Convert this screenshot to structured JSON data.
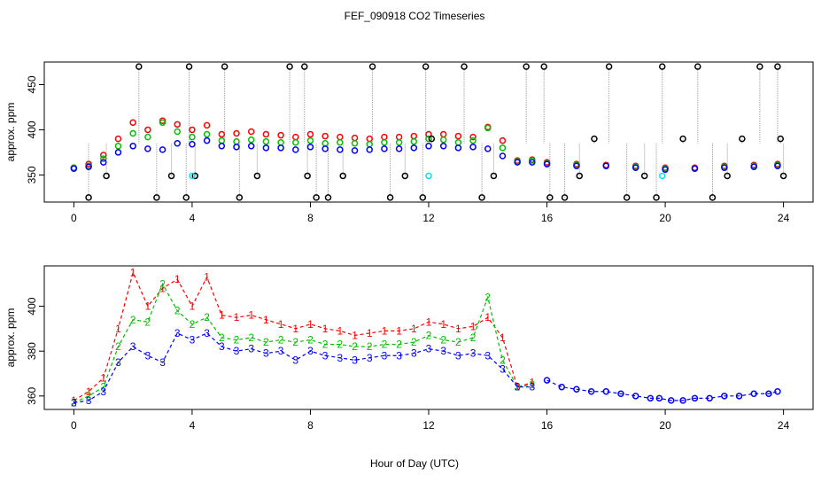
{
  "title": "FEF_090918  CO2 Timeseries",
  "xlabel": "Hour of Day (UTC)",
  "colors": {
    "level1": "#ff0000",
    "level2": "#00c000",
    "level3": "#0000ff",
    "outlier": "#000000",
    "flag": "#00e5ee",
    "spike_line": "#999999"
  },
  "chart_data": [
    {
      "type": "scatter",
      "ylabel": "approx. ppm",
      "xlim": [
        -1,
        25
      ],
      "ylim": [
        320,
        475
      ],
      "x_ticks": [
        0,
        4,
        8,
        12,
        16,
        20,
        24
      ],
      "y_ticks": [
        350,
        400,
        450
      ],
      "grid": false,
      "series": [
        {
          "key": "level1",
          "marker": "circle",
          "x": [
            0,
            0.5,
            1,
            1.5,
            2,
            2.5,
            3,
            3.5,
            4,
            4.5,
            5,
            5.5,
            6,
            6.5,
            7,
            7.5,
            8,
            8.5,
            9,
            9.5,
            10,
            10.5,
            11,
            11.5,
            12,
            12.5,
            13,
            13.5,
            14,
            14.5,
            15,
            15.5,
            16,
            17,
            18,
            19,
            20,
            21,
            22,
            23,
            23.8
          ],
          "y": [
            358,
            362,
            372,
            390,
            408,
            400,
            410,
            406,
            400,
            405,
            395,
            396,
            398,
            395,
            394,
            392,
            395,
            393,
            392,
            391,
            390,
            392,
            392,
            393,
            395,
            395,
            393,
            392,
            403,
            388,
            366,
            367,
            364,
            362,
            361,
            360,
            358,
            358,
            360,
            361,
            362
          ]
        },
        {
          "key": "level2",
          "marker": "circle",
          "x": [
            0,
            0.5,
            1,
            1.5,
            2,
            2.5,
            3,
            3.5,
            4,
            4.5,
            5,
            5.5,
            6,
            6.5,
            7,
            7.5,
            8,
            8.5,
            9,
            9.5,
            10,
            10.5,
            11,
            11.5,
            12,
            12.5,
            13,
            13.5,
            14,
            14.5,
            15,
            15.5,
            16,
            17,
            18,
            19,
            20,
            21,
            22,
            23,
            23.8
          ],
          "y": [
            358,
            360,
            368,
            382,
            396,
            392,
            408,
            398,
            392,
            395,
            388,
            387,
            389,
            387,
            386,
            386,
            388,
            385,
            386,
            385,
            384,
            386,
            386,
            387,
            390,
            389,
            386,
            388,
            402,
            380,
            365,
            366,
            363,
            361,
            360,
            359,
            357,
            357,
            359,
            360,
            361
          ]
        },
        {
          "key": "level3",
          "marker": "circle",
          "x": [
            0,
            0.5,
            1,
            1.5,
            2,
            2.5,
            3,
            3.5,
            4,
            4.5,
            5,
            5.5,
            6,
            6.5,
            7,
            7.5,
            8,
            8.5,
            9,
            9.5,
            10,
            10.5,
            11,
            11.5,
            12,
            12.5,
            13,
            13.5,
            14,
            14.5,
            15,
            15.5,
            16,
            17,
            18,
            19,
            20,
            21,
            22,
            23,
            23.8
          ],
          "y": [
            357,
            359,
            364,
            375,
            382,
            379,
            378,
            385,
            384,
            388,
            382,
            381,
            382,
            380,
            380,
            378,
            381,
            379,
            378,
            377,
            378,
            379,
            379,
            380,
            382,
            382,
            380,
            381,
            379,
            371,
            364,
            364,
            362,
            360,
            360,
            358,
            356,
            357,
            358,
            359,
            360
          ]
        },
        {
          "key": "outlier",
          "marker": "circle",
          "x": [
            0.5,
            1.1,
            2.2,
            2.8,
            3.3,
            3.8,
            3.9,
            4.1,
            5.1,
            5.6,
            6.2,
            7.3,
            7.8,
            7.9,
            8.2,
            8.6,
            9.1,
            10.1,
            10.7,
            11.2,
            11.8,
            11.9,
            12.1,
            13.2,
            13.8,
            14.2,
            15.3,
            15.9,
            16.1,
            16.6,
            17.1,
            17.6,
            18.1,
            18.7,
            19.3,
            19.7,
            19.9,
            20.6,
            21.1,
            21.6,
            22.1,
            22.6,
            23.2,
            23.8,
            23.9,
            24.0
          ],
          "y": [
            325,
            349,
            470,
            325,
            349,
            325,
            470,
            349,
            470,
            325,
            349,
            470,
            470,
            349,
            325,
            325,
            349,
            470,
            325,
            349,
            325,
            470,
            390,
            470,
            325,
            349,
            470,
            470,
            325,
            325,
            349,
            390,
            470,
            325,
            349,
            325,
            470,
            390,
            470,
            325,
            349,
            390,
            470,
            470,
            390,
            349
          ]
        },
        {
          "key": "flag",
          "marker": "circle",
          "x": [
            4.0,
            12.0,
            19.9
          ],
          "y": [
            349,
            349,
            349
          ]
        }
      ]
    },
    {
      "type": "line",
      "ylabel": "approx. ppm",
      "xlim": [
        -1,
        25
      ],
      "ylim": [
        354,
        418
      ],
      "x_ticks": [
        0,
        4,
        8,
        12,
        16,
        20,
        24
      ],
      "y_ticks": [
        360,
        380,
        400
      ],
      "grid": false,
      "series": [
        {
          "key": "level1",
          "symbol": "1",
          "x": [
            0,
            0.5,
            1,
            1.5,
            2,
            2.5,
            3,
            3.5,
            4,
            4.5,
            5,
            5.5,
            6,
            6.5,
            7,
            7.5,
            8,
            8.5,
            9,
            9.5,
            10,
            10.5,
            11,
            11.5,
            12,
            12.5,
            13,
            13.5,
            14,
            14.5,
            15,
            15.5
          ],
          "y": [
            358,
            362,
            368,
            390,
            415,
            400,
            408,
            412,
            400,
            413,
            396,
            395,
            396,
            394,
            392,
            390,
            392,
            390,
            389,
            387,
            388,
            389,
            389,
            390,
            393,
            392,
            390,
            391,
            395,
            386,
            364,
            366
          ]
        },
        {
          "key": "level2",
          "symbol": "2",
          "x": [
            0,
            0.5,
            1,
            1.5,
            2,
            2.5,
            3,
            3.5,
            4,
            4.5,
            5,
            5.5,
            6,
            6.5,
            7,
            7.5,
            8,
            8.5,
            9,
            9.5,
            10,
            10.5,
            11,
            11.5,
            12,
            12.5,
            13,
            13.5,
            14,
            14.5,
            15,
            15.5
          ],
          "y": [
            357,
            360,
            364,
            382,
            394,
            393,
            410,
            398,
            392,
            395,
            386,
            385,
            386,
            384,
            385,
            384,
            385,
            383,
            383,
            382,
            382,
            383,
            383,
            384,
            387,
            385,
            384,
            386,
            404,
            376,
            364,
            365
          ]
        },
        {
          "key": "level3",
          "symbol": "3",
          "x": [
            0,
            0.5,
            1,
            1.5,
            2,
            2.5,
            3,
            3.5,
            4,
            4.5,
            5,
            5.5,
            6,
            6.5,
            7,
            7.5,
            8,
            8.5,
            9,
            9.5,
            10,
            10.5,
            11,
            11.5,
            12,
            12.5,
            13,
            13.5,
            14,
            14.5,
            15,
            15.5
          ],
          "y": [
            357,
            358,
            362,
            375,
            382,
            378,
            375,
            388,
            385,
            388,
            382,
            380,
            381,
            379,
            380,
            376,
            380,
            378,
            377,
            376,
            377,
            378,
            378,
            379,
            381,
            380,
            378,
            379,
            378,
            372,
            364,
            364
          ]
        },
        {
          "key": "merged",
          "symbol": "o",
          "x": [
            16,
            16.5,
            17,
            17.5,
            18,
            18.5,
            19,
            19.5,
            19.8,
            20.2,
            20.6,
            21,
            21.5,
            22,
            22.5,
            23,
            23.5,
            23.8
          ],
          "y": [
            367,
            364,
            363,
            362,
            362,
            361,
            360,
            359,
            359,
            358,
            358,
            359,
            359,
            360,
            360,
            361,
            361,
            362
          ]
        }
      ]
    }
  ]
}
